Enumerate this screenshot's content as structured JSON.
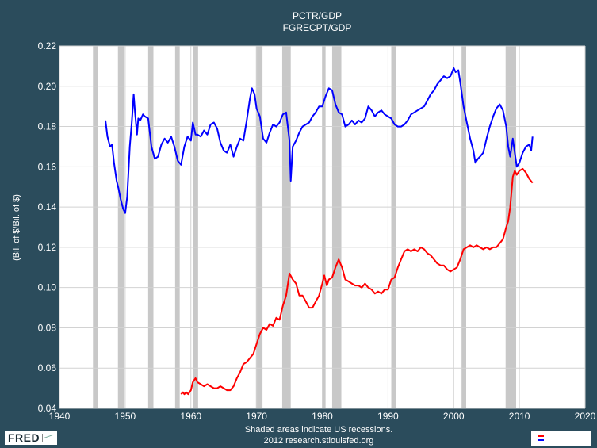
{
  "chart_data": {
    "type": "line",
    "title": "PCTR/GDP",
    "subtitle": "FGRECPT/GDP",
    "xlabel": "",
    "ylabel": "(Bil. of $/Bil. of $)",
    "xlim": [
      1940,
      2020
    ],
    "ylim": [
      0.04,
      0.22
    ],
    "x_ticks": [
      1940,
      1950,
      1960,
      1970,
      1980,
      1990,
      2000,
      2010,
      2020
    ],
    "y_ticks": [
      0.04,
      0.06,
      0.08,
      0.1,
      0.12,
      0.14,
      0.16,
      0.18,
      0.2,
      0.22
    ],
    "y_tick_labels": [
      "0.04",
      "0.06",
      "0.08",
      "0.10",
      "0.12",
      "0.14",
      "0.16",
      "0.18",
      "0.20",
      "0.22"
    ],
    "grid": true,
    "recessions": [
      [
        1945.1,
        1945.8
      ],
      [
        1948.9,
        1949.8
      ],
      [
        1953.5,
        1954.3
      ],
      [
        1957.6,
        1958.3
      ],
      [
        1960.3,
        1961.1
      ],
      [
        1969.9,
        1970.9
      ],
      [
        1973.9,
        1975.2
      ],
      [
        1980.0,
        1980.5
      ],
      [
        1981.5,
        1982.9
      ],
      [
        1990.5,
        1991.2
      ],
      [
        2001.2,
        2001.9
      ],
      [
        2007.9,
        2009.5
      ]
    ],
    "series": [
      {
        "color": "#0000ff",
        "points": [
          [
            1947.0,
            0.183
          ],
          [
            1947.3,
            0.175
          ],
          [
            1947.7,
            0.17
          ],
          [
            1948.0,
            0.171
          ],
          [
            1948.3,
            0.162
          ],
          [
            1948.7,
            0.153
          ],
          [
            1949.0,
            0.149
          ],
          [
            1949.3,
            0.144
          ],
          [
            1949.7,
            0.139
          ],
          [
            1950.0,
            0.137
          ],
          [
            1950.3,
            0.145
          ],
          [
            1950.7,
            0.17
          ],
          [
            1951.0,
            0.182
          ],
          [
            1951.3,
            0.196
          ],
          [
            1951.5,
            0.187
          ],
          [
            1951.8,
            0.176
          ],
          [
            1952.0,
            0.184
          ],
          [
            1952.3,
            0.183
          ],
          [
            1952.7,
            0.186
          ],
          [
            1953.0,
            0.185
          ],
          [
            1953.5,
            0.184
          ],
          [
            1954.0,
            0.17
          ],
          [
            1954.5,
            0.164
          ],
          [
            1955.0,
            0.165
          ],
          [
            1955.5,
            0.171
          ],
          [
            1956.0,
            0.174
          ],
          [
            1956.5,
            0.172
          ],
          [
            1957.0,
            0.175
          ],
          [
            1957.5,
            0.17
          ],
          [
            1958.0,
            0.163
          ],
          [
            1958.5,
            0.161
          ],
          [
            1959.0,
            0.17
          ],
          [
            1959.5,
            0.175
          ],
          [
            1960.0,
            0.173
          ],
          [
            1960.3,
            0.182
          ],
          [
            1960.7,
            0.176
          ],
          [
            1961.0,
            0.176
          ],
          [
            1961.5,
            0.175
          ],
          [
            1962.0,
            0.178
          ],
          [
            1962.5,
            0.176
          ],
          [
            1963.0,
            0.181
          ],
          [
            1963.5,
            0.182
          ],
          [
            1964.0,
            0.179
          ],
          [
            1964.5,
            0.172
          ],
          [
            1965.0,
            0.168
          ],
          [
            1965.5,
            0.167
          ],
          [
            1966.0,
            0.171
          ],
          [
            1966.5,
            0.165
          ],
          [
            1967.0,
            0.17
          ],
          [
            1967.5,
            0.174
          ],
          [
            1968.0,
            0.173
          ],
          [
            1968.5,
            0.183
          ],
          [
            1969.0,
            0.194
          ],
          [
            1969.3,
            0.199
          ],
          [
            1969.7,
            0.196
          ],
          [
            1970.0,
            0.189
          ],
          [
            1970.5,
            0.185
          ],
          [
            1971.0,
            0.174
          ],
          [
            1971.5,
            0.172
          ],
          [
            1972.0,
            0.177
          ],
          [
            1972.5,
            0.181
          ],
          [
            1973.0,
            0.18
          ],
          [
            1973.5,
            0.182
          ],
          [
            1974.0,
            0.186
          ],
          [
            1974.5,
            0.187
          ],
          [
            1975.0,
            0.173
          ],
          [
            1975.2,
            0.153
          ],
          [
            1975.5,
            0.17
          ],
          [
            1976.0,
            0.173
          ],
          [
            1976.5,
            0.177
          ],
          [
            1977.0,
            0.18
          ],
          [
            1977.5,
            0.181
          ],
          [
            1978.0,
            0.182
          ],
          [
            1978.5,
            0.185
          ],
          [
            1979.0,
            0.187
          ],
          [
            1979.5,
            0.19
          ],
          [
            1980.0,
            0.19
          ],
          [
            1980.5,
            0.195
          ],
          [
            1981.0,
            0.199
          ],
          [
            1981.5,
            0.198
          ],
          [
            1982.0,
            0.191
          ],
          [
            1982.5,
            0.187
          ],
          [
            1983.0,
            0.186
          ],
          [
            1983.5,
            0.18
          ],
          [
            1984.0,
            0.181
          ],
          [
            1984.5,
            0.183
          ],
          [
            1985.0,
            0.181
          ],
          [
            1985.5,
            0.183
          ],
          [
            1986.0,
            0.182
          ],
          [
            1986.5,
            0.184
          ],
          [
            1987.0,
            0.19
          ],
          [
            1987.5,
            0.188
          ],
          [
            1988.0,
            0.185
          ],
          [
            1988.5,
            0.187
          ],
          [
            1989.0,
            0.188
          ],
          [
            1989.5,
            0.186
          ],
          [
            1990.0,
            0.185
          ],
          [
            1990.5,
            0.184
          ],
          [
            1991.0,
            0.181
          ],
          [
            1991.5,
            0.18
          ],
          [
            1992.0,
            0.18
          ],
          [
            1992.5,
            0.181
          ],
          [
            1993.0,
            0.183
          ],
          [
            1993.5,
            0.186
          ],
          [
            1994.0,
            0.187
          ],
          [
            1994.5,
            0.188
          ],
          [
            1995.0,
            0.189
          ],
          [
            1995.5,
            0.19
          ],
          [
            1996.0,
            0.193
          ],
          [
            1996.5,
            0.196
          ],
          [
            1997.0,
            0.198
          ],
          [
            1997.5,
            0.201
          ],
          [
            1998.0,
            0.203
          ],
          [
            1998.5,
            0.205
          ],
          [
            1999.0,
            0.204
          ],
          [
            1999.5,
            0.205
          ],
          [
            2000.0,
            0.209
          ],
          [
            2000.3,
            0.207
          ],
          [
            2000.7,
            0.208
          ],
          [
            2001.0,
            0.202
          ],
          [
            2001.5,
            0.19
          ],
          [
            2002.0,
            0.182
          ],
          [
            2002.5,
            0.174
          ],
          [
            2003.0,
            0.168
          ],
          [
            2003.3,
            0.162
          ],
          [
            2003.7,
            0.164
          ],
          [
            2004.0,
            0.165
          ],
          [
            2004.5,
            0.167
          ],
          [
            2005.0,
            0.174
          ],
          [
            2005.5,
            0.18
          ],
          [
            2006.0,
            0.185
          ],
          [
            2006.5,
            0.189
          ],
          [
            2007.0,
            0.191
          ],
          [
            2007.5,
            0.188
          ],
          [
            2008.0,
            0.18
          ],
          [
            2008.3,
            0.17
          ],
          [
            2008.6,
            0.165
          ],
          [
            2009.0,
            0.174
          ],
          [
            2009.3,
            0.167
          ],
          [
            2009.6,
            0.16
          ],
          [
            2010.0,
            0.162
          ],
          [
            2010.5,
            0.167
          ],
          [
            2011.0,
            0.17
          ],
          [
            2011.5,
            0.171
          ],
          [
            2011.8,
            0.168
          ],
          [
            2012.0,
            0.175
          ]
        ]
      },
      {
        "color": "#ff0000",
        "points": [
          [
            1958.5,
            0.047
          ],
          [
            1958.8,
            0.048
          ],
          [
            1959.0,
            0.047
          ],
          [
            1959.3,
            0.048
          ],
          [
            1959.6,
            0.047
          ],
          [
            1960.0,
            0.049
          ],
          [
            1960.3,
            0.053
          ],
          [
            1960.7,
            0.055
          ],
          [
            1961.0,
            0.053
          ],
          [
            1961.5,
            0.052
          ],
          [
            1962.0,
            0.051
          ],
          [
            1962.5,
            0.052
          ],
          [
            1963.0,
            0.051
          ],
          [
            1963.5,
            0.05
          ],
          [
            1964.0,
            0.05
          ],
          [
            1964.5,
            0.051
          ],
          [
            1965.0,
            0.05
          ],
          [
            1965.5,
            0.049
          ],
          [
            1966.0,
            0.049
          ],
          [
            1966.5,
            0.051
          ],
          [
            1967.0,
            0.055
          ],
          [
            1967.5,
            0.058
          ],
          [
            1968.0,
            0.062
          ],
          [
            1968.5,
            0.063
          ],
          [
            1969.0,
            0.065
          ],
          [
            1969.5,
            0.067
          ],
          [
            1970.0,
            0.072
          ],
          [
            1970.5,
            0.077
          ],
          [
            1971.0,
            0.08
          ],
          [
            1971.5,
            0.079
          ],
          [
            1972.0,
            0.082
          ],
          [
            1972.5,
            0.081
          ],
          [
            1973.0,
            0.085
          ],
          [
            1973.5,
            0.084
          ],
          [
            1974.0,
            0.091
          ],
          [
            1974.5,
            0.096
          ],
          [
            1975.0,
            0.107
          ],
          [
            1975.5,
            0.104
          ],
          [
            1976.0,
            0.102
          ],
          [
            1976.5,
            0.096
          ],
          [
            1977.0,
            0.096
          ],
          [
            1977.5,
            0.093
          ],
          [
            1978.0,
            0.09
          ],
          [
            1978.5,
            0.09
          ],
          [
            1979.0,
            0.093
          ],
          [
            1979.5,
            0.096
          ],
          [
            1980.0,
            0.102
          ],
          [
            1980.3,
            0.106
          ],
          [
            1980.7,
            0.101
          ],
          [
            1981.0,
            0.104
          ],
          [
            1981.5,
            0.105
          ],
          [
            1982.0,
            0.11
          ],
          [
            1982.5,
            0.114
          ],
          [
            1983.0,
            0.11
          ],
          [
            1983.5,
            0.104
          ],
          [
            1984.0,
            0.103
          ],
          [
            1984.5,
            0.102
          ],
          [
            1985.0,
            0.101
          ],
          [
            1985.5,
            0.101
          ],
          [
            1986.0,
            0.1
          ],
          [
            1986.5,
            0.102
          ],
          [
            1987.0,
            0.1
          ],
          [
            1987.5,
            0.099
          ],
          [
            1988.0,
            0.097
          ],
          [
            1988.5,
            0.098
          ],
          [
            1989.0,
            0.097
          ],
          [
            1989.5,
            0.099
          ],
          [
            1990.0,
            0.099
          ],
          [
            1990.5,
            0.104
          ],
          [
            1991.0,
            0.105
          ],
          [
            1991.5,
            0.11
          ],
          [
            1992.0,
            0.114
          ],
          [
            1992.5,
            0.118
          ],
          [
            1993.0,
            0.119
          ],
          [
            1993.5,
            0.118
          ],
          [
            1994.0,
            0.119
          ],
          [
            1994.5,
            0.118
          ],
          [
            1995.0,
            0.12
          ],
          [
            1995.5,
            0.119
          ],
          [
            1996.0,
            0.117
          ],
          [
            1996.5,
            0.116
          ],
          [
            1997.0,
            0.114
          ],
          [
            1997.5,
            0.112
          ],
          [
            1998.0,
            0.111
          ],
          [
            1998.5,
            0.111
          ],
          [
            1999.0,
            0.109
          ],
          [
            1999.5,
            0.108
          ],
          [
            2000.0,
            0.109
          ],
          [
            2000.5,
            0.11
          ],
          [
            2001.0,
            0.114
          ],
          [
            2001.5,
            0.119
          ],
          [
            2002.0,
            0.12
          ],
          [
            2002.5,
            0.121
          ],
          [
            2003.0,
            0.12
          ],
          [
            2003.5,
            0.121
          ],
          [
            2004.0,
            0.12
          ],
          [
            2004.5,
            0.119
          ],
          [
            2005.0,
            0.12
          ],
          [
            2005.5,
            0.119
          ],
          [
            2006.0,
            0.12
          ],
          [
            2006.5,
            0.12
          ],
          [
            2007.0,
            0.122
          ],
          [
            2007.5,
            0.124
          ],
          [
            2008.0,
            0.13
          ],
          [
            2008.3,
            0.133
          ],
          [
            2008.6,
            0.14
          ],
          [
            2009.0,
            0.155
          ],
          [
            2009.3,
            0.158
          ],
          [
            2009.6,
            0.156
          ],
          [
            2010.0,
            0.158
          ],
          [
            2010.5,
            0.159
          ],
          [
            2011.0,
            0.157
          ],
          [
            2011.5,
            0.154
          ],
          [
            2012.0,
            0.152
          ]
        ]
      }
    ],
    "footer": [
      "Shaded areas indicate US recessions.",
      "2012 research.stlouisfed.org"
    ]
  },
  "colors": {
    "background": "#2b4c5c",
    "plot_area": "#ffffff",
    "recession": "#c8c8c8",
    "grid": "#d2d2d2"
  },
  "branding": {
    "logo_text": "FRED"
  }
}
